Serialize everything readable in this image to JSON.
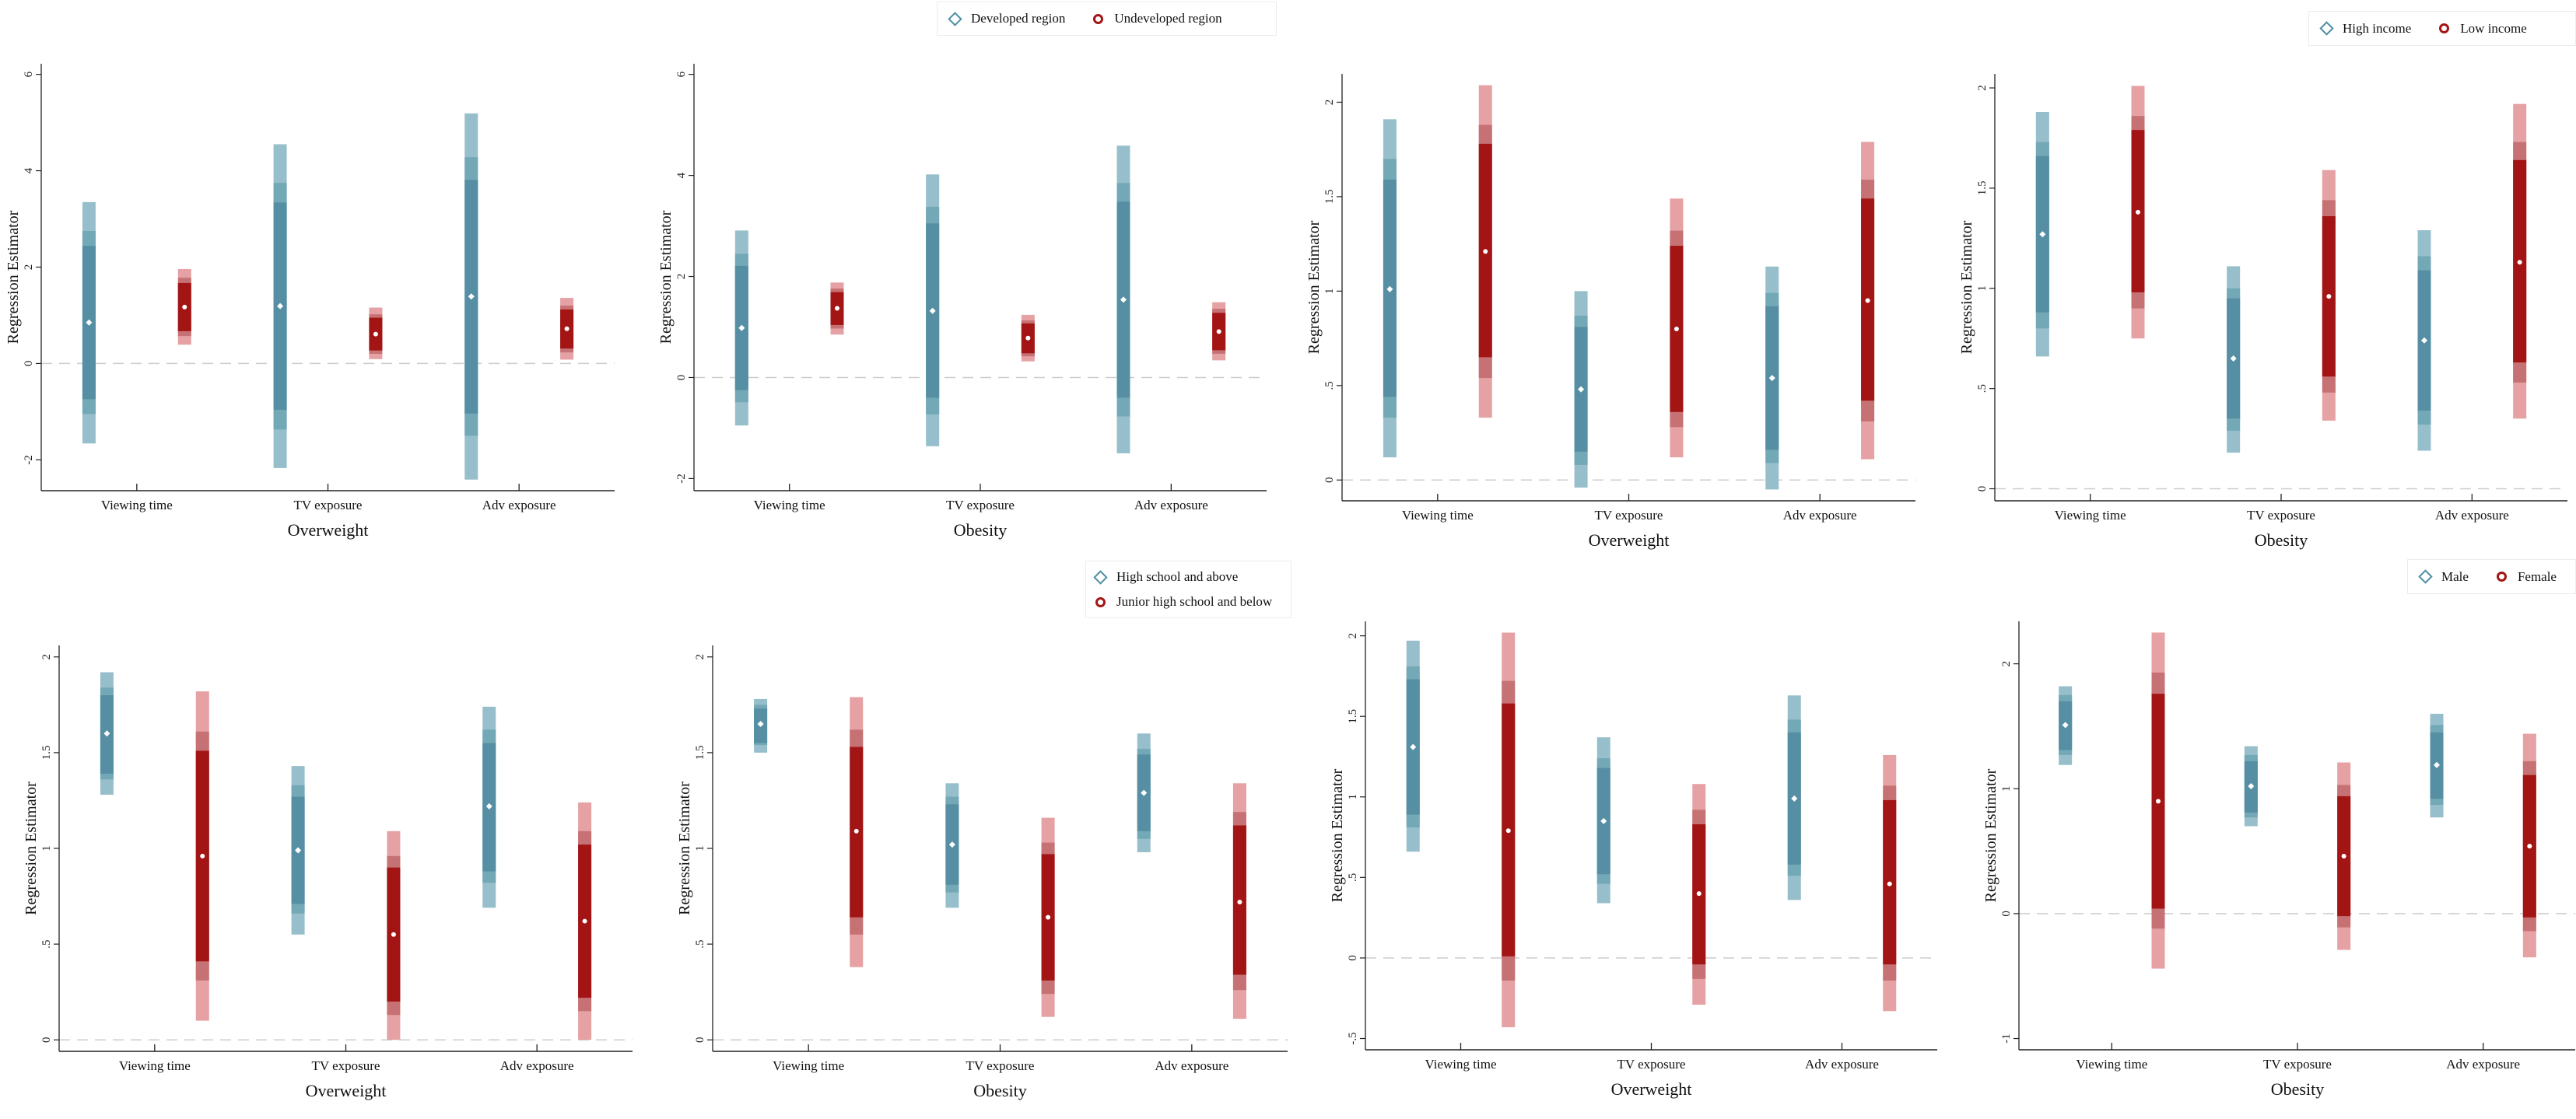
{
  "colors": {
    "series0": [
      "#97bfcb",
      "#73a8b6",
      "#568fa3"
    ],
    "series1": [
      "#e5a1a3",
      "#c67275",
      "#a31515"
    ],
    "zero_line": "#cccccc",
    "axis": "#222222"
  },
  "legends": [
    {
      "items": [
        {
          "label": "Developed region",
          "marker": "diamond"
        },
        {
          "label": "Undeveloped region",
          "marker": "circle"
        }
      ]
    },
    {
      "items": [
        {
          "label": "High income",
          "marker": "diamond"
        },
        {
          "label": "Low income",
          "marker": "circle"
        }
      ]
    },
    {
      "items": [
        {
          "label": "High school and above",
          "marker": "diamond"
        },
        {
          "label": "Junior high school and below",
          "marker": "circle"
        }
      ]
    },
    {
      "items": [
        {
          "label": "Male",
          "marker": "diamond"
        },
        {
          "label": "Female",
          "marker": "circle"
        }
      ]
    }
  ],
  "chart_data": [
    {
      "type": "bar",
      "subtype": "coefficient-interval",
      "xlabel": "Overweight",
      "ylabel": "Regression Estimator",
      "categories": [
        "Viewing time",
        "TV exposure",
        "Adv exposure"
      ],
      "ylim": [
        -2.64,
        6.22
      ],
      "yticks": [
        -2,
        0,
        2,
        4,
        6
      ],
      "ytick_labels": [
        "-2",
        "0",
        "2",
        "4",
        "6"
      ],
      "reference_line": 0,
      "grid": false,
      "series": [
        {
          "marker": "diamond",
          "estimates": [
            0.85,
            1.19,
            1.39
          ],
          "intervals": [
            [
              -1.66,
              -1.05,
              -0.74,
              2.44,
              2.75,
              3.35
            ],
            [
              -2.17,
              -1.37,
              -0.96,
              3.34,
              3.75,
              4.55
            ],
            [
              -2.41,
              -1.5,
              -1.04,
              3.81,
              4.28,
              5.19
            ]
          ]
        },
        {
          "marker": "circle",
          "estimates": [
            1.17,
            0.61,
            0.72
          ],
          "intervals": [
            [
              0.39,
              0.57,
              0.67,
              1.67,
              1.78,
              1.96
            ],
            [
              0.09,
              0.2,
              0.27,
              0.95,
              1.02,
              1.16
            ],
            [
              0.08,
              0.23,
              0.31,
              1.12,
              1.2,
              1.36
            ]
          ]
        }
      ]
    },
    {
      "type": "bar",
      "subtype": "coefficient-interval",
      "xlabel": "Obesity",
      "ylabel": "Regression Estimator",
      "categories": [
        "Viewing time",
        "TV exposure",
        "Adv exposure"
      ],
      "ylim": [
        -2.24,
        6.21
      ],
      "yticks": [
        -2,
        0,
        2,
        4,
        6
      ],
      "ytick_labels": [
        "-2",
        "0",
        "2",
        "4",
        "6"
      ],
      "reference_line": 0,
      "grid": false,
      "legend": "top-right",
      "series": [
        {
          "name": "Developed region",
          "marker": "diamond",
          "estimates": [
            0.98,
            1.32,
            1.54
          ],
          "intervals": [
            [
              -0.95,
              -0.49,
              -0.25,
              2.21,
              2.45,
              2.91
            ],
            [
              -1.36,
              -0.73,
              -0.4,
              3.05,
              3.38,
              4.02
            ],
            [
              -1.5,
              -0.77,
              -0.4,
              3.48,
              3.85,
              4.59
            ]
          ]
        },
        {
          "name": "Undeveloped region",
          "marker": "circle",
          "estimates": [
            1.37,
            0.78,
            0.91
          ],
          "intervals": [
            [
              0.85,
              0.97,
              1.04,
              1.69,
              1.76,
              1.88
            ],
            [
              0.32,
              0.42,
              0.48,
              1.07,
              1.13,
              1.24
            ],
            [
              0.34,
              0.47,
              0.54,
              1.28,
              1.36,
              1.49
            ]
          ]
        }
      ]
    },
    {
      "type": "bar",
      "subtype": "coefficient-interval",
      "xlabel": "Overweight",
      "ylabel": "Regression Estimator",
      "categories": [
        "Viewing time",
        "TV exposure",
        "Adv exposure"
      ],
      "ylim": [
        -0.11,
        2.15
      ],
      "yticks": [
        0,
        0.5,
        1,
        1.5,
        2
      ],
      "ytick_labels": [
        "0",
        ".5",
        "1",
        "1.5",
        "2"
      ],
      "reference_line": 0,
      "grid": false,
      "series": [
        {
          "marker": "diamond",
          "estimates": [
            1.01,
            0.48,
            0.54
          ],
          "intervals": [
            [
              0.12,
              0.33,
              0.44,
              1.59,
              1.7,
              1.91
            ],
            [
              -0.04,
              0.08,
              0.15,
              0.81,
              0.87,
              1.0
            ],
            [
              -0.05,
              0.09,
              0.16,
              0.92,
              0.99,
              1.13
            ]
          ]
        },
        {
          "marker": "circle",
          "estimates": [
            1.21,
            0.8,
            0.95
          ],
          "intervals": [
            [
              0.33,
              0.54,
              0.65,
              1.78,
              1.88,
              2.09
            ],
            [
              0.12,
              0.28,
              0.36,
              1.24,
              1.32,
              1.49
            ],
            [
              0.11,
              0.31,
              0.42,
              1.49,
              1.59,
              1.79
            ]
          ]
        }
      ]
    },
    {
      "type": "bar",
      "subtype": "coefficient-interval",
      "xlabel": "Obesity",
      "ylabel": "Regression Estimator",
      "categories": [
        "Viewing time",
        "TV exposure",
        "Adv exposure"
      ],
      "ylim": [
        -0.06,
        2.07
      ],
      "yticks": [
        0,
        0.5,
        1,
        1.5,
        2
      ],
      "ytick_labels": [
        "0",
        ".5",
        "1",
        "1.5",
        "2"
      ],
      "reference_line": 0,
      "grid": false,
      "legend": "top-right",
      "series": [
        {
          "name": "High income",
          "marker": "diamond",
          "estimates": [
            1.27,
            0.65,
            0.74
          ],
          "intervals": [
            [
              0.66,
              0.8,
              0.88,
              1.66,
              1.73,
              1.88
            ],
            [
              0.18,
              0.29,
              0.35,
              0.95,
              1.0,
              1.11
            ],
            [
              0.19,
              0.32,
              0.39,
              1.09,
              1.16,
              1.29
            ]
          ]
        },
        {
          "name": "Low income",
          "marker": "circle",
          "estimates": [
            1.38,
            0.96,
            1.13
          ],
          "intervals": [
            [
              0.75,
              0.9,
              0.98,
              1.79,
              1.86,
              2.01
            ],
            [
              0.34,
              0.48,
              0.56,
              1.36,
              1.44,
              1.59
            ],
            [
              0.35,
              0.53,
              0.63,
              1.64,
              1.73,
              1.92
            ]
          ]
        }
      ]
    },
    {
      "type": "bar",
      "subtype": "coefficient-interval",
      "xlabel": "Overweight",
      "ylabel": "Regression Estimator",
      "categories": [
        "Viewing time",
        "TV exposure",
        "Adv exposure"
      ],
      "ylim": [
        -0.06,
        2.06
      ],
      "yticks": [
        0,
        0.5,
        1,
        1.5,
        2
      ],
      "ytick_labels": [
        "0",
        ".5",
        "1",
        "1.5",
        "2"
      ],
      "reference_line": 0,
      "grid": false,
      "series": [
        {
          "marker": "diamond",
          "estimates": [
            1.6,
            0.99,
            1.22
          ],
          "intervals": [
            [
              1.28,
              1.36,
              1.39,
              1.8,
              1.84,
              1.92
            ],
            [
              0.55,
              0.66,
              0.71,
              1.27,
              1.33,
              1.43
            ],
            [
              0.69,
              0.82,
              0.88,
              1.55,
              1.62,
              1.74
            ]
          ]
        },
        {
          "marker": "circle",
          "estimates": [
            0.96,
            0.55,
            0.62
          ],
          "intervals": [
            [
              0.1,
              0.31,
              0.41,
              1.51,
              1.61,
              1.82
            ],
            [
              0.0,
              0.13,
              0.2,
              0.9,
              0.96,
              1.09
            ],
            [
              0.0,
              0.15,
              0.22,
              1.02,
              1.09,
              1.24
            ]
          ]
        }
      ]
    },
    {
      "type": "bar",
      "subtype": "coefficient-interval",
      "xlabel": "Obesity",
      "ylabel": "Regression Estimator",
      "categories": [
        "Viewing time",
        "TV exposure",
        "Adv exposure"
      ],
      "ylim": [
        -0.06,
        2.06
      ],
      "yticks": [
        0,
        0.5,
        1,
        1.5,
        2
      ],
      "ytick_labels": [
        "0",
        ".5",
        "1",
        "1.5",
        "2"
      ],
      "reference_line": 0,
      "grid": false,
      "legend": "top-right",
      "series": [
        {
          "name": "High school and above",
          "marker": "diamond",
          "estimates": [
            1.65,
            1.02,
            1.29
          ],
          "intervals": [
            [
              1.5,
              1.54,
              1.55,
              1.73,
              1.75,
              1.78
            ],
            [
              0.69,
              0.77,
              0.81,
              1.23,
              1.27,
              1.34
            ],
            [
              0.98,
              1.05,
              1.09,
              1.49,
              1.52,
              1.6
            ]
          ]
        },
        {
          "name": "Junior high school and below",
          "marker": "circle",
          "estimates": [
            1.09,
            0.64,
            0.72
          ],
          "intervals": [
            [
              0.38,
              0.55,
              0.64,
              1.53,
              1.62,
              1.79
            ],
            [
              0.12,
              0.24,
              0.31,
              0.97,
              1.03,
              1.16
            ],
            [
              0.11,
              0.26,
              0.34,
              1.12,
              1.19,
              1.34
            ]
          ]
        }
      ]
    },
    {
      "type": "bar",
      "subtype": "coefficient-interval",
      "xlabel": "Overweight",
      "ylabel": "Regression Estimator",
      "categories": [
        "Viewing time",
        "TV exposure",
        "Adv exposure"
      ],
      "ylim": [
        -0.57,
        2.09
      ],
      "yticks": [
        -0.5,
        0,
        0.5,
        1,
        1.5,
        2
      ],
      "ytick_labels": [
        "-.5",
        "0",
        ".5",
        "1",
        "1.5",
        "2"
      ],
      "reference_line": 0,
      "grid": false,
      "series": [
        {
          "marker": "diamond",
          "estimates": [
            1.31,
            0.85,
            0.99
          ],
          "intervals": [
            [
              0.66,
              0.81,
              0.89,
              1.73,
              1.81,
              1.97
            ],
            [
              0.34,
              0.46,
              0.52,
              1.18,
              1.24,
              1.37
            ],
            [
              0.36,
              0.51,
              0.58,
              1.4,
              1.48,
              1.63
            ]
          ]
        },
        {
          "marker": "circle",
          "estimates": [
            0.79,
            0.4,
            0.46
          ],
          "intervals": [
            [
              -0.43,
              -0.14,
              0.01,
              1.58,
              1.72,
              2.02
            ],
            [
              -0.29,
              -0.13,
              -0.04,
              0.83,
              0.92,
              1.08
            ],
            [
              -0.33,
              -0.14,
              -0.04,
              0.98,
              1.07,
              1.26
            ]
          ]
        }
      ]
    },
    {
      "type": "bar",
      "subtype": "coefficient-interval",
      "xlabel": "Obesity",
      "ylabel": "Regression Estimator",
      "categories": [
        "Viewing time",
        "TV exposure",
        "Adv exposure"
      ],
      "ylim": [
        -1.09,
        2.34
      ],
      "yticks": [
        -1,
        0,
        1,
        2
      ],
      "ytick_labels": [
        "-1",
        "0",
        "1",
        "2"
      ],
      "reference_line": 0,
      "grid": false,
      "legend": "top-right",
      "series": [
        {
          "name": "Male",
          "marker": "diamond",
          "estimates": [
            1.51,
            1.02,
            1.19
          ],
          "intervals": [
            [
              1.19,
              1.27,
              1.31,
              1.7,
              1.75,
              1.82
            ],
            [
              0.7,
              0.77,
              0.81,
              1.22,
              1.27,
              1.34
            ],
            [
              0.77,
              0.87,
              0.92,
              1.45,
              1.51,
              1.6
            ]
          ]
        },
        {
          "name": "Female",
          "marker": "circle",
          "estimates": [
            0.9,
            0.46,
            0.54
          ],
          "intervals": [
            [
              -0.44,
              -0.12,
              0.04,
              1.76,
              1.93,
              2.25
            ],
            [
              -0.29,
              -0.11,
              -0.02,
              0.94,
              1.03,
              1.21
            ],
            [
              -0.35,
              -0.14,
              -0.03,
              1.11,
              1.22,
              1.44
            ]
          ]
        }
      ]
    }
  ]
}
